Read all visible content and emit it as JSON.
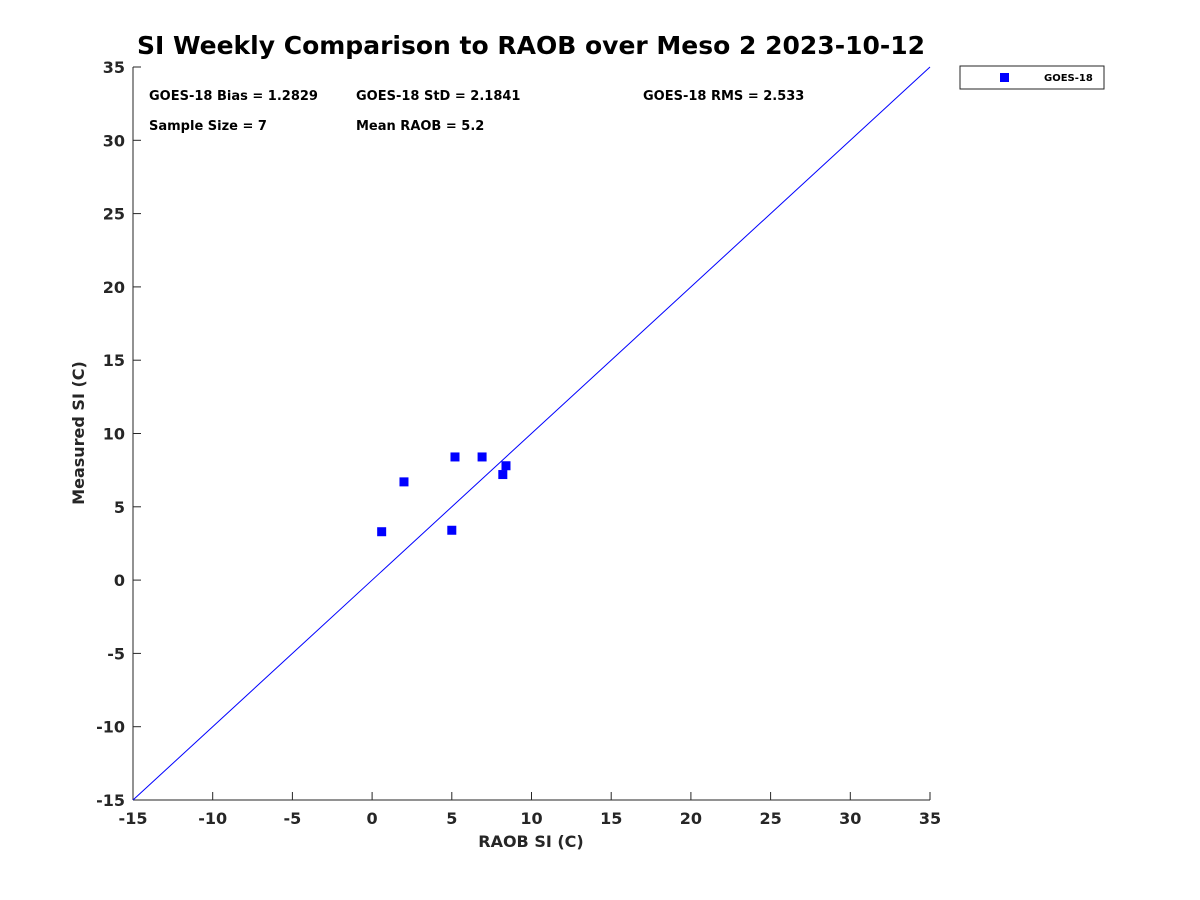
{
  "chart_data": {
    "type": "scatter",
    "title": "SI Weekly Comparison to RAOB over Meso 2 2023-10-12",
    "xlabel": "RAOB SI (C)",
    "ylabel": "Measured SI (C)",
    "xlim": [
      -15,
      35
    ],
    "ylim": [
      -15,
      35
    ],
    "xticks": [
      -15,
      -10,
      -5,
      0,
      5,
      10,
      15,
      20,
      25,
      30,
      35
    ],
    "yticks": [
      -15,
      -10,
      -5,
      0,
      5,
      10,
      15,
      20,
      25,
      30,
      35
    ],
    "grid": false,
    "legend_position": "outside-top-right",
    "reference_line": {
      "name": "one-to-one",
      "from": [
        -15,
        -15
      ],
      "to": [
        35,
        35
      ],
      "color": "#0000ff"
    },
    "series": [
      {
        "name": "GOES-18",
        "color": "#0000ff",
        "marker": "square",
        "points": [
          {
            "x": 0.6,
            "y": 3.3
          },
          {
            "x": 2.0,
            "y": 6.7
          },
          {
            "x": 5.0,
            "y": 3.4
          },
          {
            "x": 5.2,
            "y": 8.4
          },
          {
            "x": 6.9,
            "y": 8.4
          },
          {
            "x": 8.2,
            "y": 7.2
          },
          {
            "x": 8.4,
            "y": 7.8
          }
        ]
      }
    ],
    "annotations": [
      {
        "name": "bias",
        "text": "GOES-18 Bias = 1.2829"
      },
      {
        "name": "std",
        "text": "GOES-18 StD = 2.1841"
      },
      {
        "name": "rms",
        "text": "GOES-18 RMS = 2.533"
      },
      {
        "name": "sample-size",
        "text": "Sample Size = 7"
      },
      {
        "name": "mean-raob",
        "text": "Mean RAOB = 5.2"
      }
    ]
  }
}
